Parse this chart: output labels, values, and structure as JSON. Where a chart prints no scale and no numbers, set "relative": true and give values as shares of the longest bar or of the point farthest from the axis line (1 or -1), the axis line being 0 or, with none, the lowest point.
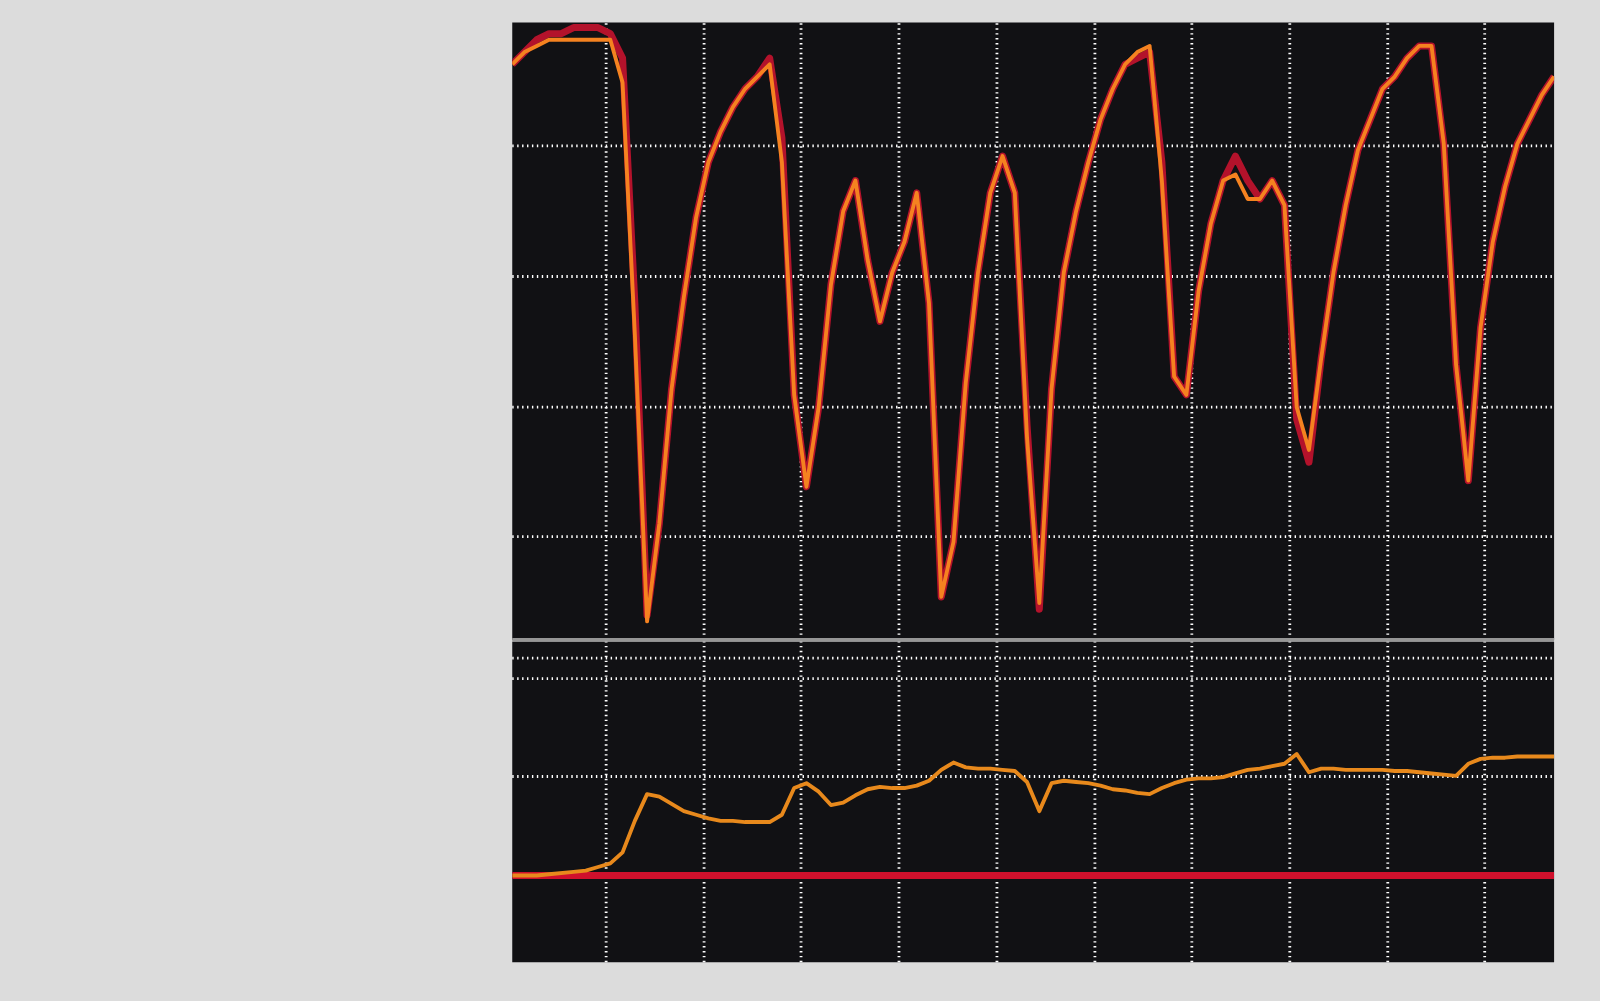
{
  "chart_data": [
    {
      "type": "line",
      "relative": true,
      "grid": true,
      "categories": [
        null,
        null,
        null,
        null,
        null,
        null,
        null,
        null,
        null,
        null,
        null,
        null,
        null,
        null,
        null,
        null,
        null,
        null,
        null,
        null,
        null,
        null,
        null,
        null,
        null,
        null,
        null,
        null,
        null,
        null,
        null,
        null,
        null,
        null,
        null,
        null,
        null,
        null,
        null,
        null,
        null,
        null,
        null,
        null,
        null,
        null,
        null,
        null,
        null,
        null,
        null,
        null,
        null,
        null,
        null,
        null,
        null,
        null,
        null,
        null,
        null,
        null,
        null,
        null,
        null,
        null,
        null,
        null,
        null,
        null,
        null,
        null,
        null,
        null,
        null,
        null,
        null,
        null,
        null,
        null,
        null,
        null,
        null,
        null,
        null,
        null
      ],
      "series": [
        {
          "color": "#b3122b",
          "values": [
            0.94,
            0.96,
            0.98,
            0.99,
            0.99,
            1.0,
            1.0,
            1.0,
            0.99,
            0.95,
            0.55,
            0.04,
            0.19,
            0.41,
            0.56,
            0.69,
            0.78,
            0.83,
            0.87,
            0.9,
            0.92,
            0.95,
            0.82,
            0.4,
            0.25,
            0.38,
            0.58,
            0.7,
            0.75,
            0.62,
            0.52,
            0.6,
            0.65,
            0.73,
            0.55,
            0.07,
            0.16,
            0.42,
            0.6,
            0.73,
            0.79,
            0.73,
            0.35,
            0.05,
            0.41,
            0.6,
            0.7,
            0.78,
            0.85,
            0.9,
            0.94,
            0.95,
            0.96,
            0.78,
            0.43,
            0.4,
            0.57,
            0.68,
            0.75,
            0.79,
            0.75,
            0.72,
            0.75,
            0.71,
            0.36,
            0.29,
            0.46,
            0.6,
            0.71,
            0.8,
            0.85,
            0.9,
            0.92,
            0.95,
            0.97,
            0.97,
            0.81,
            0.45,
            0.26,
            0.51,
            0.65,
            0.74,
            0.81,
            0.85,
            0.89,
            0.92
          ]
        },
        {
          "color": "#f58220",
          "values": [
            0.94,
            0.96,
            0.97,
            0.98,
            0.98,
            0.98,
            0.98,
            0.98,
            0.98,
            0.91,
            0.5,
            0.03,
            0.19,
            0.41,
            0.56,
            0.69,
            0.78,
            0.83,
            0.87,
            0.9,
            0.92,
            0.94,
            0.78,
            0.4,
            0.25,
            0.38,
            0.58,
            0.7,
            0.75,
            0.62,
            0.52,
            0.6,
            0.65,
            0.73,
            0.55,
            0.07,
            0.16,
            0.42,
            0.6,
            0.73,
            0.79,
            0.73,
            0.33,
            0.06,
            0.41,
            0.6,
            0.7,
            0.78,
            0.85,
            0.9,
            0.94,
            0.96,
            0.97,
            0.75,
            0.43,
            0.4,
            0.57,
            0.68,
            0.75,
            0.76,
            0.72,
            0.72,
            0.75,
            0.71,
            0.38,
            0.31,
            0.46,
            0.6,
            0.71,
            0.8,
            0.85,
            0.9,
            0.92,
            0.95,
            0.97,
            0.97,
            0.81,
            0.45,
            0.26,
            0.51,
            0.65,
            0.74,
            0.81,
            0.85,
            0.89,
            0.92
          ]
        }
      ]
    },
    {
      "type": "line",
      "relative": true,
      "grid": true,
      "categories": [
        null,
        null,
        null,
        null,
        null,
        null,
        null,
        null,
        null,
        null,
        null,
        null,
        null,
        null,
        null,
        null,
        null,
        null,
        null,
        null,
        null,
        null,
        null,
        null,
        null,
        null,
        null,
        null,
        null,
        null,
        null,
        null,
        null,
        null,
        null,
        null,
        null,
        null,
        null,
        null,
        null,
        null,
        null,
        null,
        null,
        null,
        null,
        null,
        null,
        null,
        null,
        null,
        null,
        null,
        null,
        null,
        null,
        null,
        null,
        null,
        null,
        null,
        null,
        null,
        null,
        null,
        null,
        null,
        null,
        null,
        null,
        null,
        null,
        null,
        null,
        null,
        null,
        null,
        null,
        null,
        null,
        null,
        null,
        null,
        null,
        null
      ],
      "series": [
        {
          "color": "#d0102c",
          "values": [
            0,
            0,
            0,
            0,
            0,
            0,
            0,
            0,
            0,
            0,
            0,
            0,
            0,
            0,
            0,
            0,
            0,
            0,
            0,
            0,
            0,
            0,
            0,
            0,
            0,
            0,
            0,
            0,
            0,
            0,
            0,
            0,
            0,
            0,
            0,
            0,
            0,
            0,
            0,
            0,
            0,
            0,
            0,
            0,
            0,
            0,
            0,
            0,
            0,
            0,
            0,
            0,
            0,
            0,
            0,
            0,
            0,
            0,
            0,
            0,
            0,
            0,
            0,
            0,
            0,
            0,
            0,
            0,
            0,
            0,
            0,
            0,
            0,
            0,
            0,
            0,
            0,
            0,
            0,
            0,
            0,
            0,
            0,
            0,
            0,
            0
          ]
        },
        {
          "color": "#e8891c",
          "values": [
            0,
            0,
            0,
            0.01,
            0.02,
            0.03,
            0.04,
            0.07,
            0.1,
            0.19,
            0.45,
            0.67,
            0.65,
            0.59,
            0.53,
            0.5,
            0.47,
            0.45,
            0.45,
            0.44,
            0.44,
            0.44,
            0.5,
            0.72,
            0.76,
            0.69,
            0.58,
            0.6,
            0.66,
            0.71,
            0.73,
            0.72,
            0.72,
            0.74,
            0.78,
            0.87,
            0.93,
            0.89,
            0.88,
            0.88,
            0.87,
            0.86,
            0.77,
            0.53,
            0.76,
            0.78,
            0.77,
            0.76,
            0.74,
            0.71,
            0.7,
            0.68,
            0.67,
            0.72,
            0.76,
            0.79,
            0.8,
            0.8,
            0.81,
            0.84,
            0.87,
            0.88,
            0.9,
            0.92,
            1.0,
            0.85,
            0.88,
            0.88,
            0.87,
            0.87,
            0.87,
            0.87,
            0.86,
            0.86,
            0.85,
            0.84,
            0.83,
            0.82,
            0.92,
            0.96,
            0.97,
            0.97,
            0.98,
            0.98,
            0.98,
            0.98
          ]
        }
      ]
    }
  ]
}
